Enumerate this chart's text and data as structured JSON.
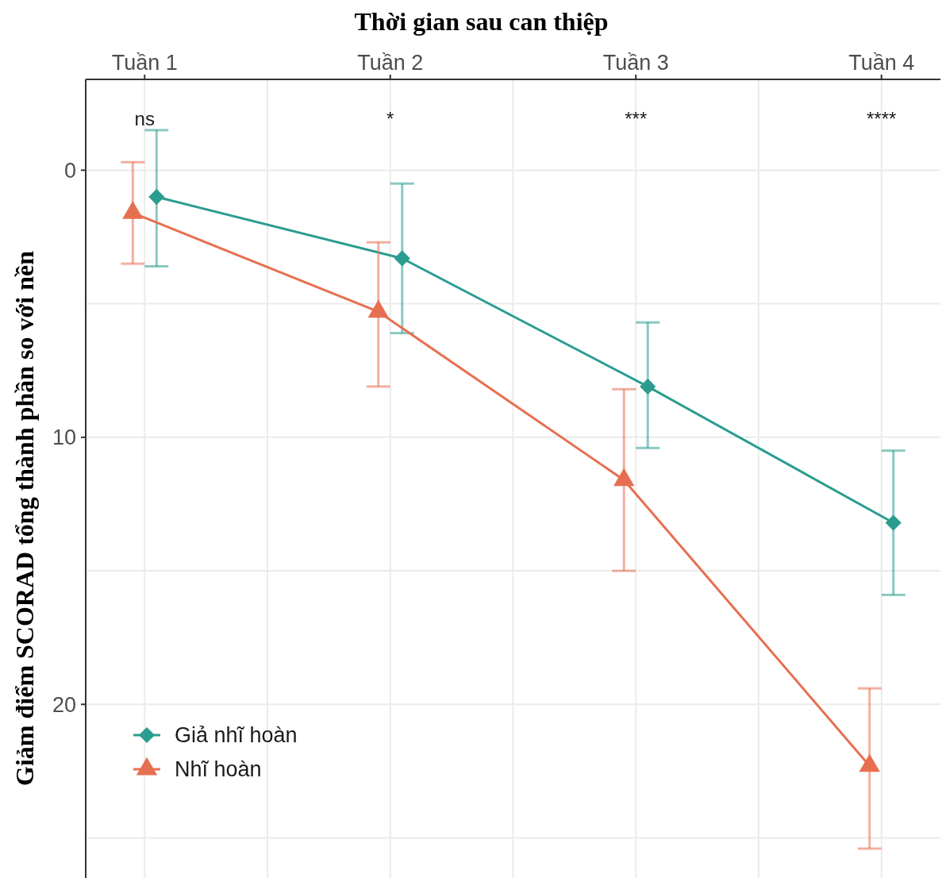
{
  "chart_data": {
    "type": "line",
    "xlabel": "Thời gian sau can thiệp",
    "ylabel": "Giảm điểm SCORAD tổng thành phần so với nền",
    "categories": [
      "Tuần 1",
      "Tuần 2",
      "Tuần 3",
      "Tuần 4"
    ],
    "series": [
      {
        "name": "Giả nhĩ hoàn",
        "color": "#2a9d8f",
        "marker": "diamond",
        "values": [
          1.0,
          3.3,
          8.1,
          13.2
        ],
        "errors": [
          [
            -1.5,
            3.6
          ],
          [
            0.5,
            6.1
          ],
          [
            5.7,
            10.4
          ],
          [
            10.5,
            15.9
          ]
        ]
      },
      {
        "name": "Nhĩ hoàn",
        "color": "#e76f51",
        "marker": "triangle",
        "values": [
          1.6,
          5.3,
          11.6,
          22.3
        ],
        "errors": [
          [
            -0.3,
            3.5
          ],
          [
            2.7,
            8.1
          ],
          [
            8.2,
            15.0
          ],
          [
            19.4,
            25.4
          ]
        ]
      }
    ],
    "ylim": [
      26.5,
      -3.4
    ],
    "yticks": [
      0,
      {
        "value": 5,
        "label": null
      },
      10,
      {
        "value": 15,
        "label": null
      },
      20,
      {
        "value": 25,
        "label": null
      }
    ],
    "grid": true,
    "legend": "bottom left",
    "annotations": [
      "ns",
      "*",
      "***",
      "****"
    ]
  }
}
